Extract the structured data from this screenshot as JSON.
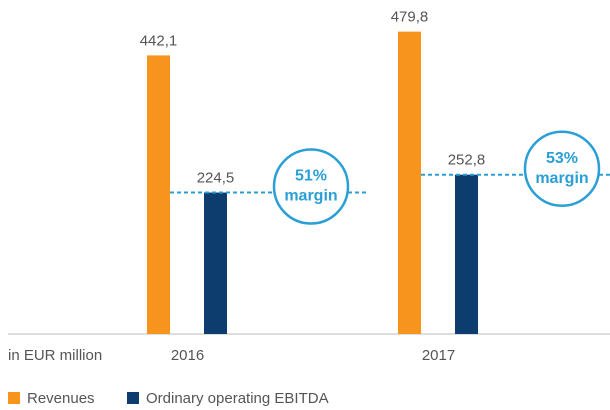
{
  "chart_data": {
    "type": "bar",
    "categories": [
      "2016",
      "2017"
    ],
    "series": [
      {
        "name": "Revenues",
        "color": "#f7941d",
        "values": [
          442.1,
          479.8
        ],
        "value_labels": [
          "442,1",
          "479,8"
        ]
      },
      {
        "name": "Ordinary operating EBITDA",
        "color": "#0d3c6e",
        "values": [
          224.5,
          252.8
        ],
        "value_labels": [
          "224,5",
          "252,8"
        ]
      }
    ],
    "ylim": [
      0,
      530
    ],
    "axis_label": "in EUR million",
    "annotations": [
      [
        "51%",
        "margin"
      ],
      [
        "53%",
        "margin"
      ]
    ]
  }
}
